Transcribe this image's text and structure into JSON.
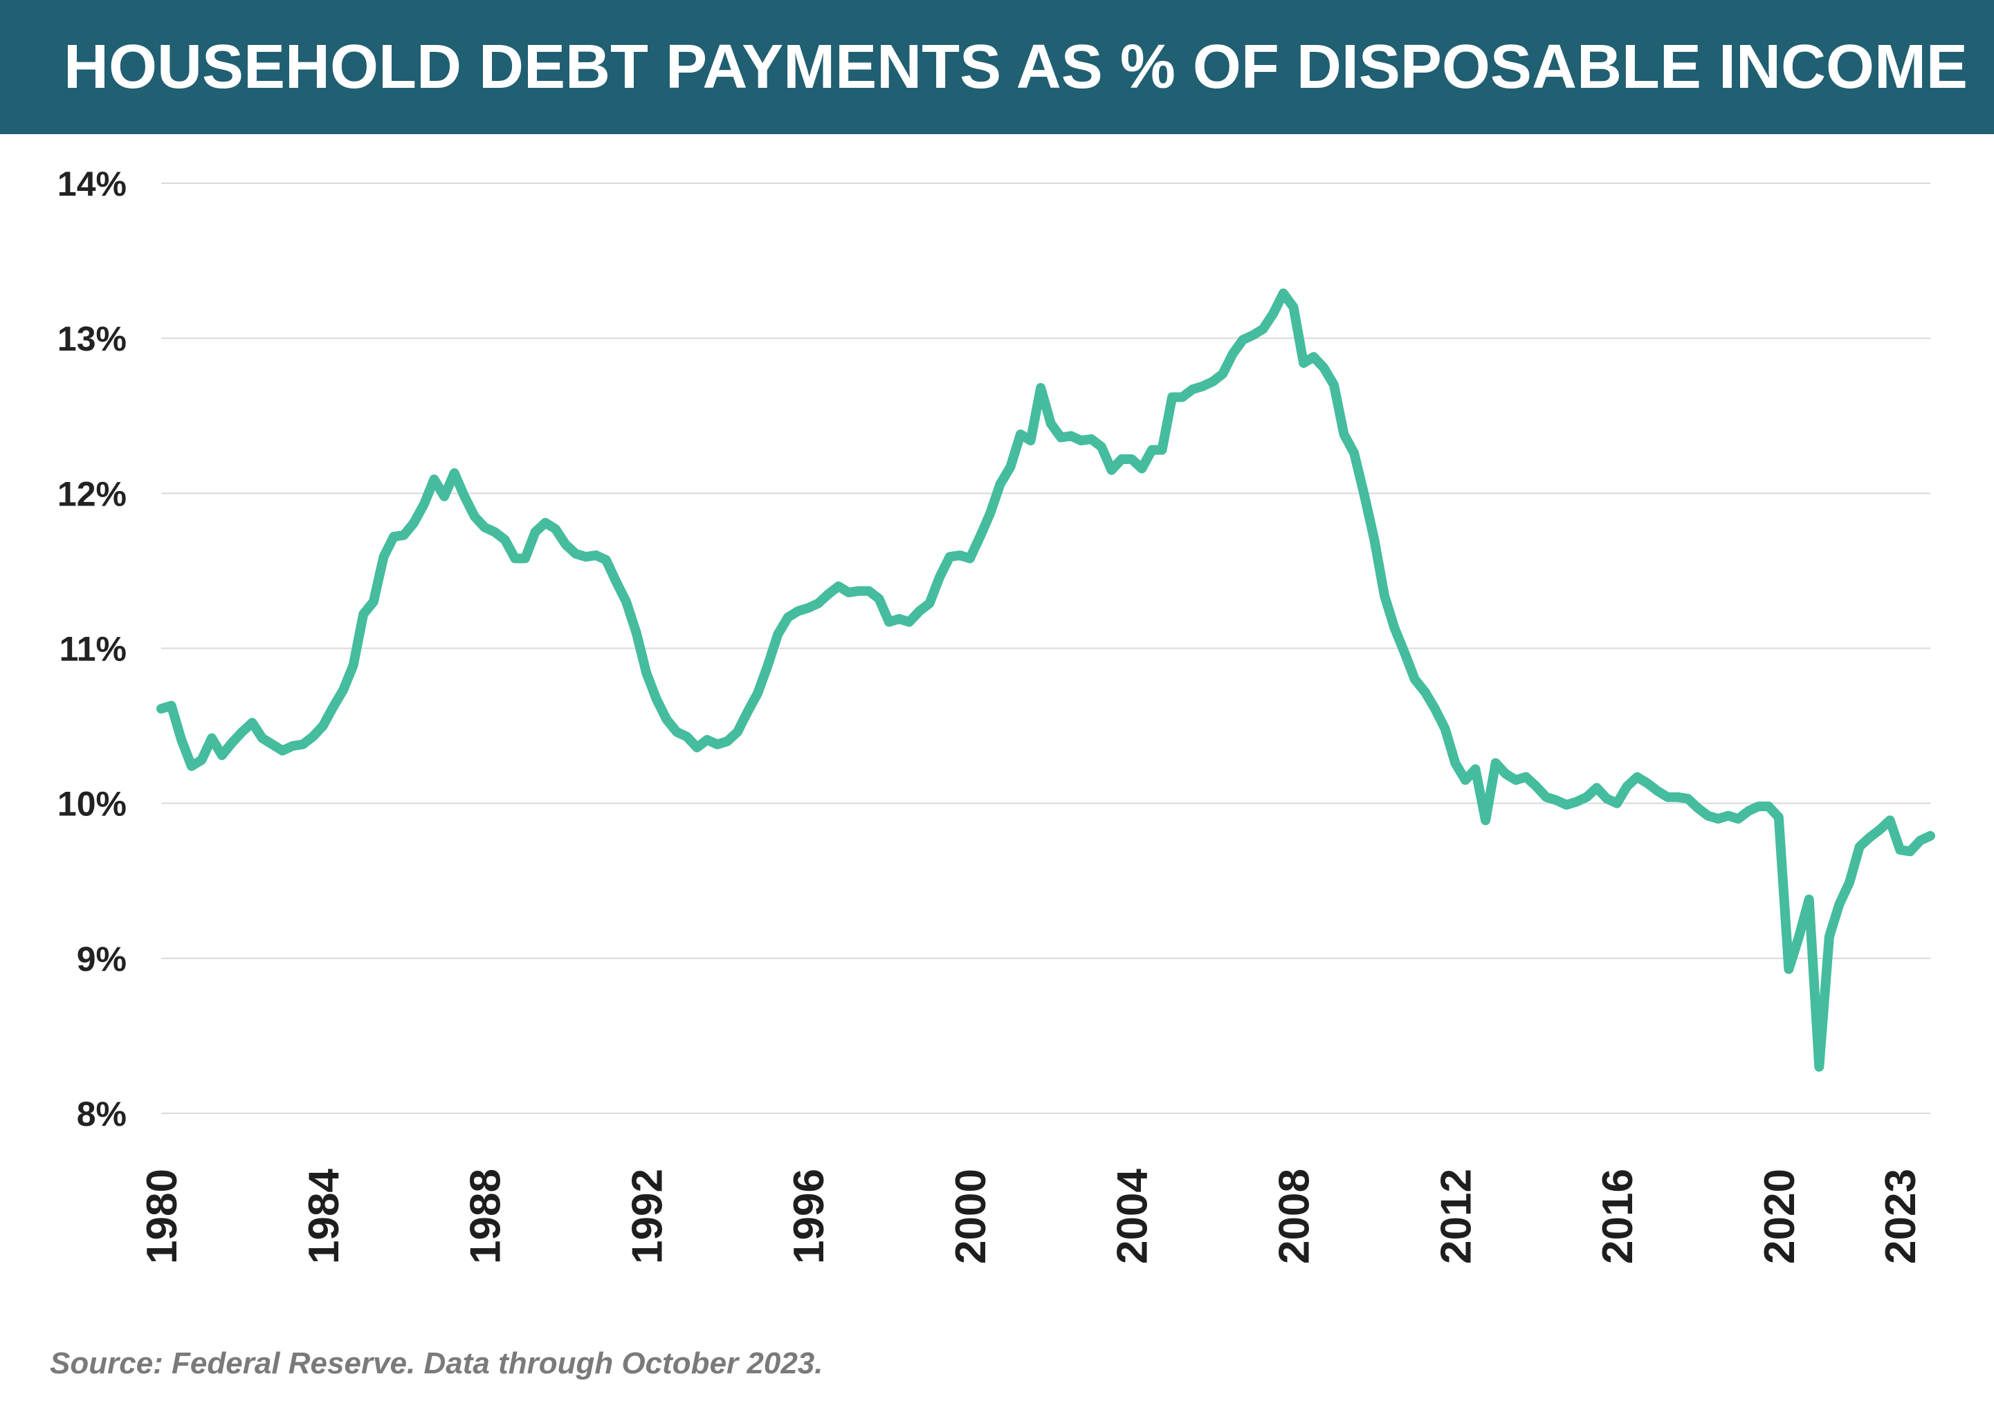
{
  "header": {
    "title": "HOUSEHOLD DEBT PAYMENTS AS % OF DISPOSABLE INCOME"
  },
  "footer": {
    "source": "Source: Federal Reserve. Data through October 2023."
  },
  "colors": {
    "title_bar": "#215f72",
    "title_text": "#ffffff",
    "line": "#45bc9e",
    "grid": "#d9d9d9"
  },
  "chart_data": {
    "type": "line",
    "title": "HOUSEHOLD DEBT PAYMENTS AS % OF DISPOSABLE INCOME",
    "xlabel": "",
    "ylabel": "",
    "ylim": [
      8,
      14
    ],
    "xlim": [
      1980.0,
      2023.75
    ],
    "grid": "horizontal",
    "legend": "none",
    "yticks": [
      {
        "value": 14,
        "label": "14%"
      },
      {
        "value": 13,
        "label": "13%"
      },
      {
        "value": 12,
        "label": "12%"
      },
      {
        "value": 11,
        "label": "11%"
      },
      {
        "value": 10,
        "label": "10%"
      },
      {
        "value": 9,
        "label": "9%"
      },
      {
        "value": 8,
        "label": "8%"
      }
    ],
    "xticks": [
      {
        "value": 1980,
        "label": "1980"
      },
      {
        "value": 1984,
        "label": "1984"
      },
      {
        "value": 1988,
        "label": "1988"
      },
      {
        "value": 1992,
        "label": "1992"
      },
      {
        "value": 1996,
        "label": "1996"
      },
      {
        "value": 2000,
        "label": "2000"
      },
      {
        "value": 2004,
        "label": "2004"
      },
      {
        "value": 2008,
        "label": "2008"
      },
      {
        "value": 2012,
        "label": "2012"
      },
      {
        "value": 2016,
        "label": "2016"
      },
      {
        "value": 2020,
        "label": "2020"
      },
      {
        "value": 2023,
        "label": "2023"
      }
    ],
    "series": [
      {
        "color": "#45bc9e",
        "x": [
          1980.0,
          1980.25,
          1980.5,
          1980.75,
          1981.0,
          1981.25,
          1981.5,
          1981.75,
          1982.0,
          1982.25,
          1982.5,
          1982.75,
          1983.0,
          1983.25,
          1983.5,
          1983.75,
          1984.0,
          1984.25,
          1984.5,
          1984.75,
          1985.0,
          1985.25,
          1985.5,
          1985.75,
          1986.0,
          1986.25,
          1986.5,
          1986.75,
          1987.0,
          1987.25,
          1987.5,
          1987.75,
          1988.0,
          1988.25,
          1988.5,
          1988.75,
          1989.0,
          1989.25,
          1989.5,
          1989.75,
          1990.0,
          1990.25,
          1990.5,
          1990.75,
          1991.0,
          1991.25,
          1991.5,
          1991.75,
          1992.0,
          1992.25,
          1992.5,
          1992.75,
          1993.0,
          1993.25,
          1993.5,
          1993.75,
          1994.0,
          1994.25,
          1994.5,
          1994.75,
          1995.0,
          1995.25,
          1995.5,
          1995.75,
          1996.0,
          1996.25,
          1996.5,
          1996.75,
          1997.0,
          1997.25,
          1997.5,
          1997.75,
          1998.0,
          1998.25,
          1998.5,
          1998.75,
          1999.0,
          1999.25,
          1999.5,
          1999.75,
          2000.0,
          2000.25,
          2000.5,
          2000.75,
          2001.0,
          2001.25,
          2001.5,
          2001.75,
          2002.0,
          2002.25,
          2002.5,
          2002.75,
          2003.0,
          2003.25,
          2003.5,
          2003.75,
          2004.0,
          2004.25,
          2004.5,
          2004.75,
          2005.0,
          2005.25,
          2005.5,
          2005.75,
          2006.0,
          2006.25,
          2006.5,
          2006.75,
          2007.0,
          2007.25,
          2007.5,
          2007.75,
          2008.0,
          2008.25,
          2008.5,
          2008.75,
          2009.0,
          2009.25,
          2009.5,
          2009.75,
          2010.0,
          2010.25,
          2010.5,
          2010.75,
          2011.0,
          2011.25,
          2011.5,
          2011.75,
          2012.0,
          2012.25,
          2012.5,
          2012.75,
          2013.0,
          2013.25,
          2013.5,
          2013.75,
          2014.0,
          2014.25,
          2014.5,
          2014.75,
          2015.0,
          2015.25,
          2015.5,
          2015.75,
          2016.0,
          2016.25,
          2016.5,
          2016.75,
          2017.0,
          2017.25,
          2017.5,
          2017.75,
          2018.0,
          2018.25,
          2018.5,
          2018.75,
          2019.0,
          2019.25,
          2019.5,
          2019.75,
          2020.0,
          2020.25,
          2020.5,
          2020.75,
          2021.0,
          2021.25,
          2021.5,
          2021.75,
          2022.0,
          2022.25,
          2022.5,
          2022.75,
          2023.0,
          2023.25,
          2023.5,
          2023.75
        ],
        "values": [
          10.61,
          10.63,
          10.41,
          10.24,
          10.28,
          10.42,
          10.31,
          10.39,
          10.46,
          10.52,
          10.42,
          10.38,
          10.34,
          10.37,
          10.38,
          10.43,
          10.5,
          10.62,
          10.73,
          10.89,
          11.22,
          11.3,
          11.59,
          11.72,
          11.73,
          11.81,
          11.93,
          12.09,
          11.98,
          12.13,
          11.98,
          11.85,
          11.78,
          11.75,
          11.7,
          11.58,
          11.58,
          11.75,
          11.81,
          11.77,
          11.67,
          11.61,
          11.59,
          11.6,
          11.57,
          11.43,
          11.3,
          11.1,
          10.84,
          10.67,
          10.54,
          10.46,
          10.43,
          10.36,
          10.41,
          10.38,
          10.4,
          10.46,
          10.59,
          10.71,
          10.89,
          11.09,
          11.2,
          11.24,
          11.26,
          11.29,
          11.35,
          11.4,
          11.36,
          11.37,
          11.37,
          11.32,
          11.17,
          11.19,
          11.17,
          11.24,
          11.29,
          11.46,
          11.59,
          11.6,
          11.58,
          11.72,
          11.87,
          12.06,
          12.17,
          12.38,
          12.34,
          12.68,
          12.45,
          12.36,
          12.37,
          12.34,
          12.35,
          12.3,
          12.15,
          12.22,
          12.22,
          12.16,
          12.28,
          12.28,
          12.62,
          12.62,
          12.67,
          12.69,
          12.72,
          12.77,
          12.9,
          12.99,
          13.02,
          13.06,
          13.16,
          13.29,
          13.2,
          12.84,
          12.88,
          12.81,
          12.7,
          12.38,
          12.26,
          11.99,
          11.7,
          11.34,
          11.13,
          10.97,
          10.8,
          10.72,
          10.61,
          10.48,
          10.26,
          10.15,
          10.22,
          9.89,
          10.26,
          10.19,
          10.15,
          10.17,
          10.11,
          10.04,
          10.02,
          9.99,
          10.01,
          10.04,
          10.1,
          10.03,
          10.0,
          10.11,
          10.17,
          10.13,
          10.08,
          10.04,
          10.04,
          10.03,
          9.97,
          9.92,
          9.9,
          9.92,
          9.9,
          9.95,
          9.98,
          9.98,
          9.91,
          8.93,
          9.14,
          9.38,
          8.3,
          9.14,
          9.35,
          9.49,
          9.72,
          9.78,
          9.83,
          9.89,
          9.7,
          9.69,
          9.76,
          9.79
        ]
      }
    ]
  }
}
